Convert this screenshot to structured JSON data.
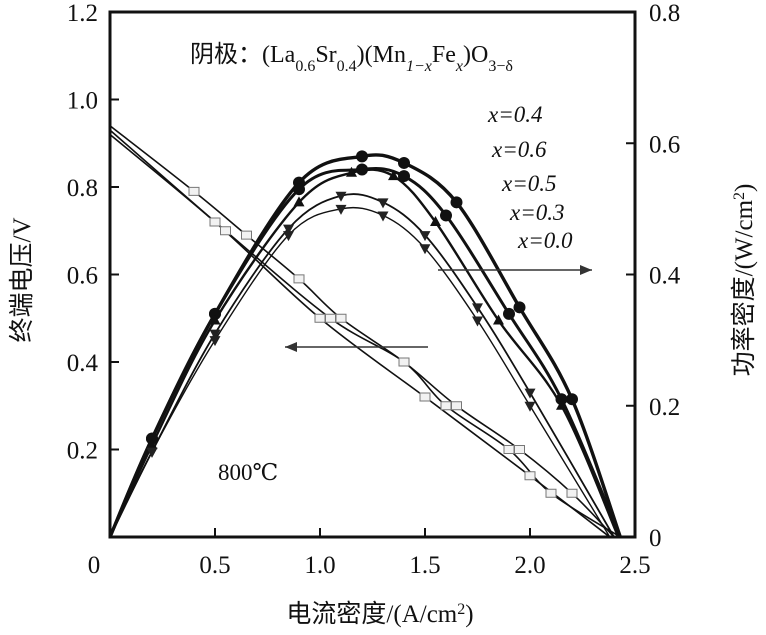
{
  "chart_data": {
    "type": "line",
    "title": "阴极：(La0.6Sr0.4)(Mn1−xFex)O3−δ",
    "title_parts": [
      {
        "t": "阴极：(La",
        "s": ""
      },
      {
        "t": "0.6",
        "s": "sub"
      },
      {
        "t": "Sr",
        "s": ""
      },
      {
        "t": "0.4",
        "s": "sub"
      },
      {
        "t": ")(Mn",
        "s": ""
      },
      {
        "t": "1−x",
        "s": "sub"
      },
      {
        "t": "Fe",
        "s": ""
      },
      {
        "t": "x",
        "s": "sub"
      },
      {
        "t": ")O",
        "s": ""
      },
      {
        "t": "3−δ",
        "s": "sub"
      }
    ],
    "xlabel": "电流密度/(A/cm2)",
    "ylabel_left": "终端电压/V",
    "ylabel_right": "功率密度/(W/cm2)",
    "xlim": [
      0,
      2.5
    ],
    "ylim_left": [
      0,
      1.2
    ],
    "ylim_right": [
      0,
      0.8
    ],
    "x_ticks": [
      "0",
      "0.5",
      "1.0",
      "1.5",
      "2.0",
      "2.5"
    ],
    "y_left_ticks": [
      "0.2",
      "0.4",
      "0.6",
      "0.8",
      "1.0",
      "1.2"
    ],
    "y_right_ticks": [
      "0",
      "0.2",
      "0.4",
      "0.6",
      "0.8"
    ],
    "annotation_temperature": "800℃",
    "legend_labels": [
      "x=0.4",
      "x=0.6",
      "x=0.5",
      "x=0.3",
      "x=0.0"
    ],
    "voltage_series": [
      {
        "name": "x=0.4",
        "axis": "left",
        "marker": "square",
        "x": [
          0.0,
          0.4,
          0.65,
          0.9,
          1.1,
          1.4,
          1.65,
          1.95,
          2.2,
          2.4
        ],
        "y": [
          0.94,
          0.79,
          0.69,
          0.59,
          0.5,
          0.4,
          0.3,
          0.2,
          0.1,
          0.0
        ]
      },
      {
        "name": "x=0.6",
        "axis": "left",
        "marker": "square",
        "x": [
          0.0,
          0.55,
          1.05,
          1.4,
          1.6,
          1.9,
          2.1,
          2.43
        ],
        "y": [
          0.93,
          0.7,
          0.5,
          0.4,
          0.3,
          0.2,
          0.1,
          0.0
        ]
      },
      {
        "name": "x=0.0",
        "axis": "left",
        "marker": "square",
        "x": [
          0.0,
          0.5,
          1.0,
          1.5,
          2.0,
          2.38
        ],
        "y": [
          0.92,
          0.72,
          0.5,
          0.32,
          0.14,
          0.0
        ]
      }
    ],
    "power_series": [
      {
        "name": "x=0.4",
        "axis": "right",
        "marker": "circle",
        "x": [
          0.0,
          0.2,
          0.5,
          0.9,
          1.2,
          1.4,
          1.65,
          1.95,
          2.2,
          2.43
        ],
        "y": [
          0.0,
          0.15,
          0.34,
          0.54,
          0.58,
          0.57,
          0.51,
          0.35,
          0.21,
          0.0
        ]
      },
      {
        "name": "x=0.6",
        "axis": "right",
        "marker": "circle",
        "x": [
          0.0,
          0.2,
          0.5,
          0.9,
          1.2,
          1.4,
          1.6,
          1.9,
          2.15,
          2.43
        ],
        "y": [
          0.0,
          0.15,
          0.34,
          0.53,
          0.56,
          0.55,
          0.49,
          0.34,
          0.21,
          0.0
        ]
      },
      {
        "name": "x=0.5",
        "axis": "right",
        "marker": "triangle-up",
        "x": [
          0.0,
          0.2,
          0.5,
          0.9,
          1.15,
          1.35,
          1.55,
          1.85,
          2.15,
          2.42
        ],
        "y": [
          0.0,
          0.14,
          0.33,
          0.51,
          0.555,
          0.55,
          0.48,
          0.33,
          0.2,
          0.0
        ]
      },
      {
        "name": "x=0.3",
        "axis": "right",
        "marker": "triangle-down",
        "x": [
          0.0,
          0.2,
          0.5,
          0.85,
          1.1,
          1.3,
          1.5,
          1.75,
          2.0,
          2.4
        ],
        "y": [
          0.0,
          0.13,
          0.31,
          0.47,
          0.52,
          0.51,
          0.46,
          0.35,
          0.22,
          0.0
        ]
      },
      {
        "name": "x=0.0",
        "axis": "right",
        "marker": "triangle-down",
        "x": [
          0.0,
          0.2,
          0.5,
          0.85,
          1.1,
          1.3,
          1.5,
          1.75,
          2.0,
          2.38
        ],
        "y": [
          0.0,
          0.13,
          0.3,
          0.46,
          0.5,
          0.49,
          0.44,
          0.33,
          0.2,
          0.0
        ]
      }
    ],
    "grid": false,
    "legend_placement": "top-right (text labels listed beside curves)"
  }
}
